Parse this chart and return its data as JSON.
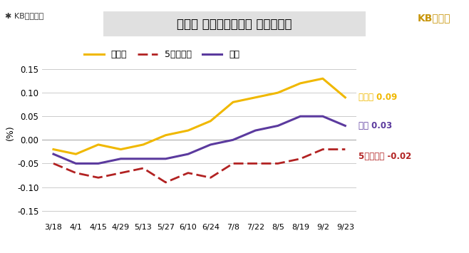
{
  "title": "지역별 아파트매매가격 주간변동률",
  "ylabel": "(%)",
  "ylim": [
    -0.17,
    0.2
  ],
  "yticks": [
    -0.15,
    -0.1,
    -0.05,
    0.0,
    0.05,
    0.1,
    0.15
  ],
  "background_color": "#ffffff",
  "title_bg_color": "#e0e0e0",
  "x_labels": [
    "3/18",
    "4/1",
    "4/15",
    "4/29",
    "5/13",
    "5/27",
    "6/10",
    "6/24",
    "7/8",
    "7/22",
    "8/5",
    "8/19",
    "9/2",
    "9/23"
  ],
  "sudogwon": [
    -0.02,
    -0.03,
    -0.01,
    -0.02,
    -0.01,
    0.01,
    0.02,
    0.04,
    0.08,
    0.09,
    0.1,
    0.12,
    0.13,
    0.09
  ],
  "five_cities": [
    -0.05,
    -0.07,
    -0.08,
    -0.07,
    -0.06,
    -0.09,
    -0.07,
    -0.08,
    -0.05,
    -0.05,
    -0.05,
    -0.04,
    -0.02,
    -0.02
  ],
  "jeongguk": [
    -0.03,
    -0.05,
    -0.05,
    -0.04,
    -0.04,
    -0.04,
    -0.03,
    -0.01,
    0.0,
    0.02,
    0.03,
    0.05,
    0.05,
    0.03
  ],
  "color_sudo": "#f0b800",
  "color_five": "#b22222",
  "color_jeon": "#5b3a9e",
  "label_sudo": "수도권",
  "label_five": "5개광역시",
  "label_jeon": "전국",
  "end_label_sudo": "수도권 0.09",
  "end_label_five": "5개광역시 -0.02",
  "end_label_jeon": "전국 0.03",
  "logo_text_kb": "KB국민은행",
  "logo_text_right": "KB부동산"
}
